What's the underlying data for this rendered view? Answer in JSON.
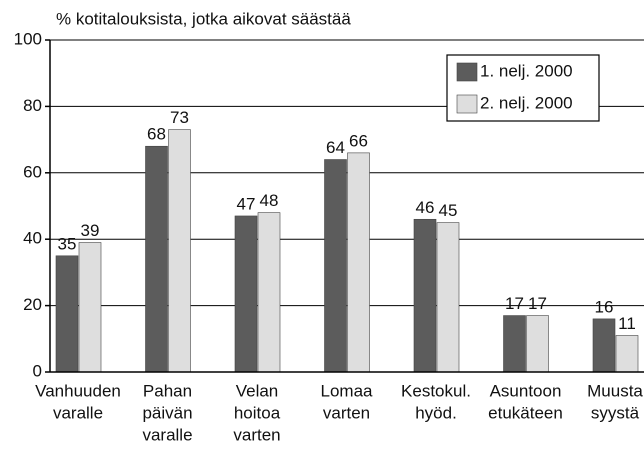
{
  "chart_data": {
    "type": "bar",
    "title": "% kotitalouksista, jotka aikovat säästää",
    "categories": [
      [
        "Vanhuuden",
        "varalle"
      ],
      [
        "Pahan",
        "päivän",
        "varalle"
      ],
      [
        "Velan",
        "hoitoa",
        "varten"
      ],
      [
        "Lomaa",
        "varten"
      ],
      [
        "Kestokul.",
        "hyöd."
      ],
      [
        "Asuntoon",
        "etukäteen"
      ],
      [
        "Muusta",
        "syystä"
      ]
    ],
    "series": [
      {
        "name": "1. nelj. 2000",
        "color": "#5c5c5c",
        "values": [
          35,
          68,
          47,
          64,
          46,
          17,
          16
        ]
      },
      {
        "name": "2. nelj. 2000",
        "color": "#dedede",
        "values": [
          39,
          73,
          48,
          66,
          45,
          17,
          11
        ]
      }
    ],
    "ylim": [
      0,
      100
    ],
    "yticks": [
      0,
      20,
      40,
      60,
      80,
      100
    ],
    "grid": true,
    "legend": "top-right"
  }
}
